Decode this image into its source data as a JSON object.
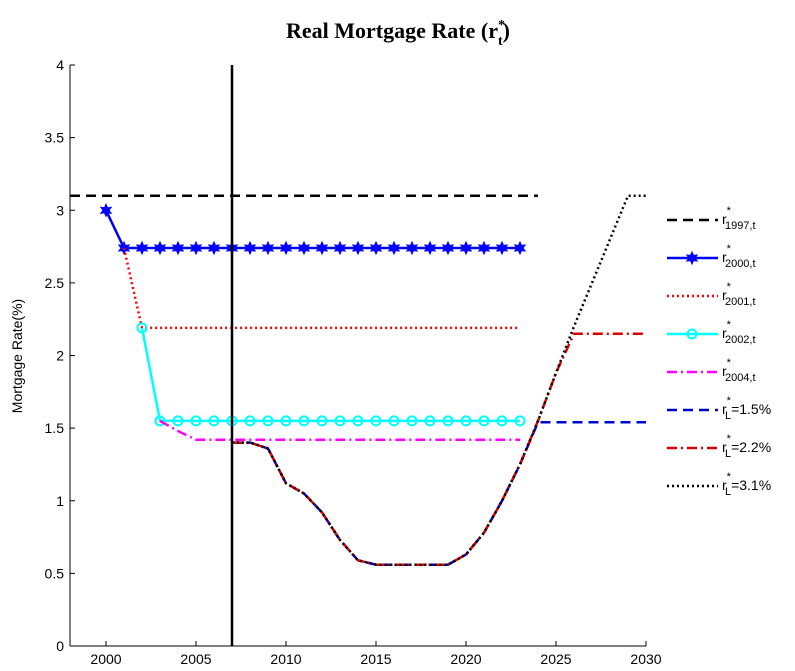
{
  "chart_data": {
    "type": "line",
    "title": {
      "text": "Real Mortgage Rate (r",
      "sup": "*",
      "sub": "t",
      "after": ")"
    },
    "ylabel": "Mortgage Rate(%)",
    "xlim": [
      1998,
      2030
    ],
    "xticks": [
      2000,
      2005,
      2010,
      2015,
      2020,
      2025,
      2030
    ],
    "ylim": [
      0,
      4
    ],
    "yticks": [
      0,
      0.5,
      1,
      1.5,
      2,
      2.5,
      3,
      3.5,
      4
    ],
    "vline": {
      "x": 2007,
      "color": "#000000"
    },
    "series": [
      {
        "name": {
          "base": "r",
          "sup": "*",
          "sub": "1997,t",
          "after": ""
        },
        "color": "#000000",
        "dash": "dashed",
        "marker": "none",
        "x": [
          1998,
          2024
        ],
        "values": [
          3.1,
          3.1
        ]
      },
      {
        "name": {
          "base": "r",
          "sup": "*",
          "sub": "2000,t",
          "after": ""
        },
        "color": "#0000ff",
        "dash": "solid",
        "marker": "star",
        "x": [
          2000,
          2001,
          2002,
          2003,
          2004,
          2005,
          2006,
          2007,
          2008,
          2009,
          2010,
          2011,
          2012,
          2013,
          2014,
          2015,
          2016,
          2017,
          2018,
          2019,
          2020,
          2021,
          2022,
          2023
        ],
        "values": [
          3.0,
          2.74,
          2.74,
          2.74,
          2.74,
          2.74,
          2.74,
          2.74,
          2.74,
          2.74,
          2.74,
          2.74,
          2.74,
          2.74,
          2.74,
          2.74,
          2.74,
          2.74,
          2.74,
          2.74,
          2.74,
          2.74,
          2.74,
          2.74
        ]
      },
      {
        "name": {
          "base": "r",
          "sup": "*",
          "sub": "2001,t",
          "after": ""
        },
        "color": "#ff0000",
        "dash": "dotted",
        "marker": "none",
        "x": [
          2001,
          2002,
          2023
        ],
        "values": [
          2.74,
          2.19,
          2.19
        ]
      },
      {
        "name": {
          "base": "r",
          "sup": "*",
          "sub": "2002,t",
          "after": ""
        },
        "color": "#00ffff",
        "dash": "solid",
        "marker": "circle",
        "x": [
          2002,
          2003,
          2004,
          2005,
          2006,
          2007,
          2008,
          2009,
          2010,
          2011,
          2012,
          2013,
          2014,
          2015,
          2016,
          2017,
          2018,
          2019,
          2020,
          2021,
          2022,
          2023
        ],
        "values": [
          2.19,
          1.55,
          1.55,
          1.55,
          1.55,
          1.55,
          1.55,
          1.55,
          1.55,
          1.55,
          1.55,
          1.55,
          1.55,
          1.55,
          1.55,
          1.55,
          1.55,
          1.55,
          1.55,
          1.55,
          1.55,
          1.55
        ]
      },
      {
        "name": {
          "base": "r",
          "sup": "*",
          "sub": "2004,t",
          "after": ""
        },
        "color": "#ff00ff",
        "dash": "dashdot",
        "marker": "none",
        "x": [
          2003,
          2004,
          2005,
          2023
        ],
        "values": [
          1.55,
          1.48,
          1.42,
          1.42
        ]
      },
      {
        "name": {
          "base": "r",
          "sup": "*",
          "sub": "L",
          "after": "=1.5%"
        },
        "color": "#0000cc",
        "dash": "dashed",
        "marker": "none",
        "x": [
          2007,
          2008,
          2009,
          2010,
          2011,
          2012,
          2013,
          2014,
          2015,
          2016,
          2017,
          2018,
          2019,
          2020,
          2021,
          2022,
          2023,
          2024,
          2030
        ],
        "values": [
          1.4,
          1.4,
          1.36,
          1.12,
          1.05,
          0.92,
          0.73,
          0.59,
          0.56,
          0.56,
          0.56,
          0.56,
          0.56,
          0.63,
          0.78,
          1.0,
          1.25,
          1.54,
          1.54
        ]
      },
      {
        "name": {
          "base": "r",
          "sup": "*",
          "sub": "L",
          "after": "=2.2%"
        },
        "color": "#dd0000",
        "dash": "dashdot",
        "marker": "none",
        "x": [
          2007,
          2008,
          2009,
          2010,
          2011,
          2012,
          2013,
          2014,
          2015,
          2016,
          2017,
          2018,
          2019,
          2020,
          2021,
          2022,
          2023,
          2024,
          2025,
          2026,
          2030
        ],
        "values": [
          1.4,
          1.4,
          1.36,
          1.12,
          1.05,
          0.92,
          0.73,
          0.59,
          0.56,
          0.56,
          0.56,
          0.56,
          0.56,
          0.63,
          0.78,
          1.0,
          1.25,
          1.55,
          1.88,
          2.15,
          2.15
        ]
      },
      {
        "name": {
          "base": "r",
          "sup": "*",
          "sub": "L",
          "after": "=3.1%"
        },
        "color": "#000000",
        "dash": "dotted",
        "marker": "none",
        "x": [
          2007,
          2008,
          2009,
          2010,
          2011,
          2012,
          2013,
          2014,
          2015,
          2016,
          2017,
          2018,
          2019,
          2020,
          2021,
          2022,
          2023,
          2024,
          2025,
          2026,
          2027,
          2028,
          2029,
          2030
        ],
        "values": [
          1.4,
          1.4,
          1.36,
          1.12,
          1.05,
          0.92,
          0.73,
          0.59,
          0.56,
          0.56,
          0.56,
          0.56,
          0.56,
          0.63,
          0.78,
          1.0,
          1.25,
          1.55,
          1.88,
          2.2,
          2.5,
          2.8,
          3.1,
          3.1
        ]
      }
    ]
  }
}
